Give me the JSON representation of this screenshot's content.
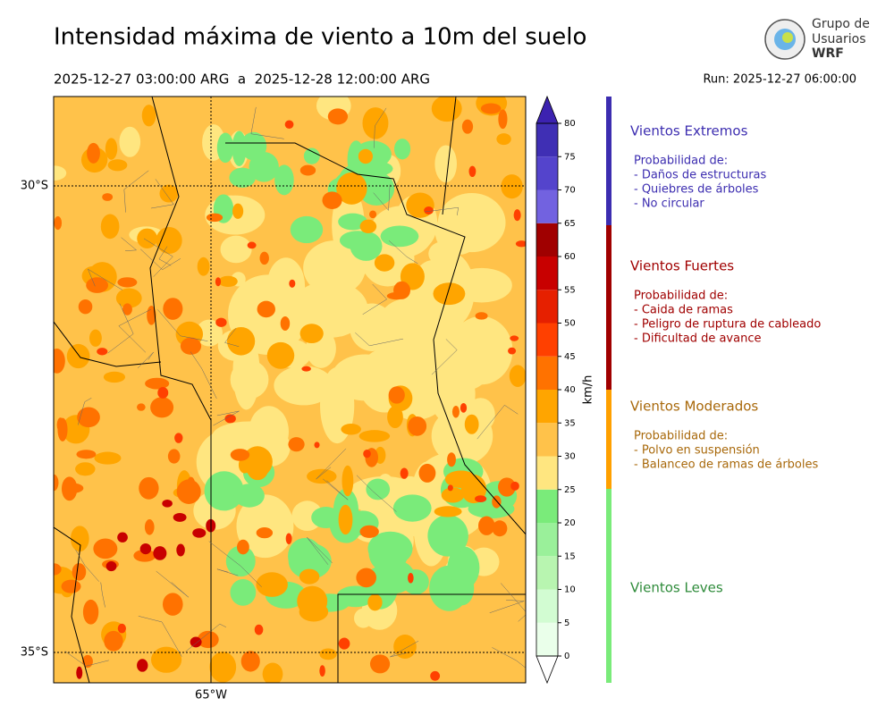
{
  "header": {
    "title": "Intensidad máxima de viento a 10m del suelo",
    "period": "2025-12-27 03:00:00 ARG  a  2025-12-28 12:00:00 ARG",
    "run": "Run: 2025-12-27 06:00:00",
    "logo": [
      "Grupo de",
      "Usuarios",
      "WRF"
    ]
  },
  "map": {
    "lat_labels": [
      "30°S",
      "35°S"
    ],
    "lon_labels": [
      "65°W"
    ]
  },
  "colorbar": {
    "label": "km/h",
    "ticks": [
      0,
      5,
      10,
      15,
      20,
      25,
      30,
      35,
      40,
      45,
      50,
      55,
      60,
      65,
      70,
      75,
      80
    ],
    "colors": [
      "#eaffea",
      "#d2fcd2",
      "#b8f5b0",
      "#9af09a",
      "#7aeb7a",
      "#ffe680",
      "#ffc24a",
      "#ffa500",
      "#ff7200",
      "#ff4000",
      "#e62000",
      "#c80000",
      "#a00000",
      "#7262e0",
      "#5444cc",
      "#3f2fb4"
    ],
    "under_color": "#ffffff",
    "over_color": "#3c22b0"
  },
  "legend": [
    {
      "title": "Vientos Extremos",
      "color": "#3c2db0",
      "bar_color": "#3c2db0",
      "lines": [
        "Probabilidad de:",
        "- Daños de estructuras",
        "- Quiebres de árboles",
        "- No circular"
      ]
    },
    {
      "title": "Vientos Fuertes",
      "color": "#a00000",
      "bar_color": "#a00000",
      "lines": [
        "Probabilidad de:",
        "- Caida de ramas",
        "- Peligro de ruptura de cableado",
        "- Dificultad de avance"
      ]
    },
    {
      "title": "Vientos Moderados",
      "color": "#a8680a",
      "bar_color": "#ffa000",
      "lines": [
        "Probabilidad de:",
        "- Polvo en suspensión",
        "- Balanceo de ramas de árboles"
      ]
    },
    {
      "title": "Vientos Leves",
      "color": "#2e8b3a",
      "bar_color": "#7aeb7a",
      "lines": []
    }
  ]
}
